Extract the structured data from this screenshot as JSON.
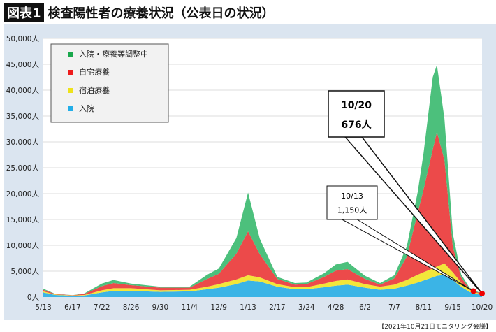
{
  "title": {
    "badge": "図表1",
    "text": "検査陽性者の療養状況（公表日の状況）"
  },
  "footer": "【2021年10月21日モニタリング会議】",
  "chart_data": {
    "type": "area",
    "stacked": true,
    "ylim": [
      0,
      50000
    ],
    "yticks": [
      0,
      5000,
      10000,
      15000,
      20000,
      25000,
      30000,
      35000,
      40000,
      45000,
      50000
    ],
    "ytick_labels": [
      "0人",
      "5,000人",
      "10,000人",
      "15,000人",
      "20,000人",
      "25,000人",
      "30,000人",
      "35,000人",
      "40,000人",
      "45,000人",
      "50,000人"
    ],
    "xtick_dates": [
      "2020-05-13",
      "2020-06-17",
      "2020-07-22",
      "2020-08-26",
      "2020-09-30",
      "2020-11-04",
      "2020-12-09",
      "2021-01-13",
      "2021-02-17",
      "2021-03-24",
      "2021-04-28",
      "2021-06-02",
      "2021-07-07",
      "2021-08-11",
      "2021-09-15",
      "2021-10-20"
    ],
    "xtick_labels": [
      "5/13",
      "6/17",
      "7/22",
      "8/26",
      "9/30",
      "11/4",
      "12/9",
      "1/13",
      "2/17",
      "3/24",
      "4/28",
      "6/2",
      "7/7",
      "8/11",
      "9/15",
      "10/20"
    ],
    "grid": true,
    "legend_position": "top-left",
    "x": [
      "2020-05-13",
      "2020-05-27",
      "2020-06-17",
      "2020-07-01",
      "2020-07-22",
      "2020-08-05",
      "2020-08-26",
      "2020-09-30",
      "2020-11-04",
      "2020-11-25",
      "2020-12-09",
      "2020-12-30",
      "2021-01-13",
      "2021-01-27",
      "2021-02-17",
      "2021-03-10",
      "2021-03-24",
      "2021-04-14",
      "2021-04-28",
      "2021-05-12",
      "2021-06-02",
      "2021-06-20",
      "2021-07-07",
      "2021-07-22",
      "2021-08-04",
      "2021-08-11",
      "2021-08-22",
      "2021-08-27",
      "2021-09-05",
      "2021-09-15",
      "2021-09-25",
      "2021-10-05",
      "2021-10-13",
      "2021-10-20"
    ],
    "series": [
      {
        "name": "入院",
        "color": "#3bb4e6",
        "values": [
          900,
          400,
          250,
          300,
          900,
          1200,
          1200,
          1000,
          1100,
          1500,
          1800,
          2500,
          3200,
          3000,
          2000,
          1500,
          1500,
          1900,
          2200,
          2400,
          1800,
          1400,
          1600,
          2200,
          2800,
          3200,
          3800,
          4100,
          4300,
          3300,
          2000,
          1000,
          600,
          400
        ]
      },
      {
        "name": "宿泊療養",
        "color": "#f2e63a",
        "values": [
          200,
          100,
          50,
          100,
          400,
          500,
          500,
          300,
          300,
          500,
          700,
          900,
          1000,
          800,
          500,
          400,
          400,
          700,
          900,
          1000,
          700,
          600,
          800,
          1100,
          1500,
          1600,
          1700,
          1800,
          2200,
          1500,
          800,
          400,
          250,
          150
        ]
      },
      {
        "name": "自宅療養",
        "color": "#ec4a4a",
        "values": [
          300,
          100,
          50,
          200,
          800,
          1000,
          600,
          500,
          400,
          1500,
          2000,
          5000,
          8500,
          4500,
          1000,
          500,
          600,
          1300,
          2000,
          2000,
          1000,
          400,
          1200,
          4500,
          12000,
          16000,
          23000,
          26000,
          20000,
          5000,
          1000,
          200,
          150,
          70
        ]
      },
      {
        "name": "入院・療養等調整中",
        "color": "#4cc07c",
        "values": [
          200,
          50,
          30,
          100,
          500,
          600,
          300,
          200,
          200,
          800,
          1000,
          3000,
          7500,
          3000,
          400,
          300,
          300,
          700,
          1200,
          1400,
          600,
          300,
          600,
          2000,
          4000,
          7000,
          14000,
          13000,
          8000,
          2500,
          600,
          200,
          150,
          56
        ]
      }
    ],
    "legend": [
      {
        "label": "入院・療養等調整中",
        "color": "#1aa84c"
      },
      {
        "label": "自宅療養",
        "color": "#ee1c1c"
      },
      {
        "label": "宿泊療養",
        "color": "#eee21a"
      },
      {
        "label": "入院",
        "color": "#22aee8"
      }
    ],
    "annotations": [
      {
        "date_label": "10/20",
        "value_label": "676人",
        "date": "2021-10-20",
        "value": 676,
        "bold": true
      },
      {
        "date_label": "10/13",
        "value_label": "1,150人",
        "date": "2021-10-13",
        "value": 1150,
        "bold": false
      }
    ]
  }
}
